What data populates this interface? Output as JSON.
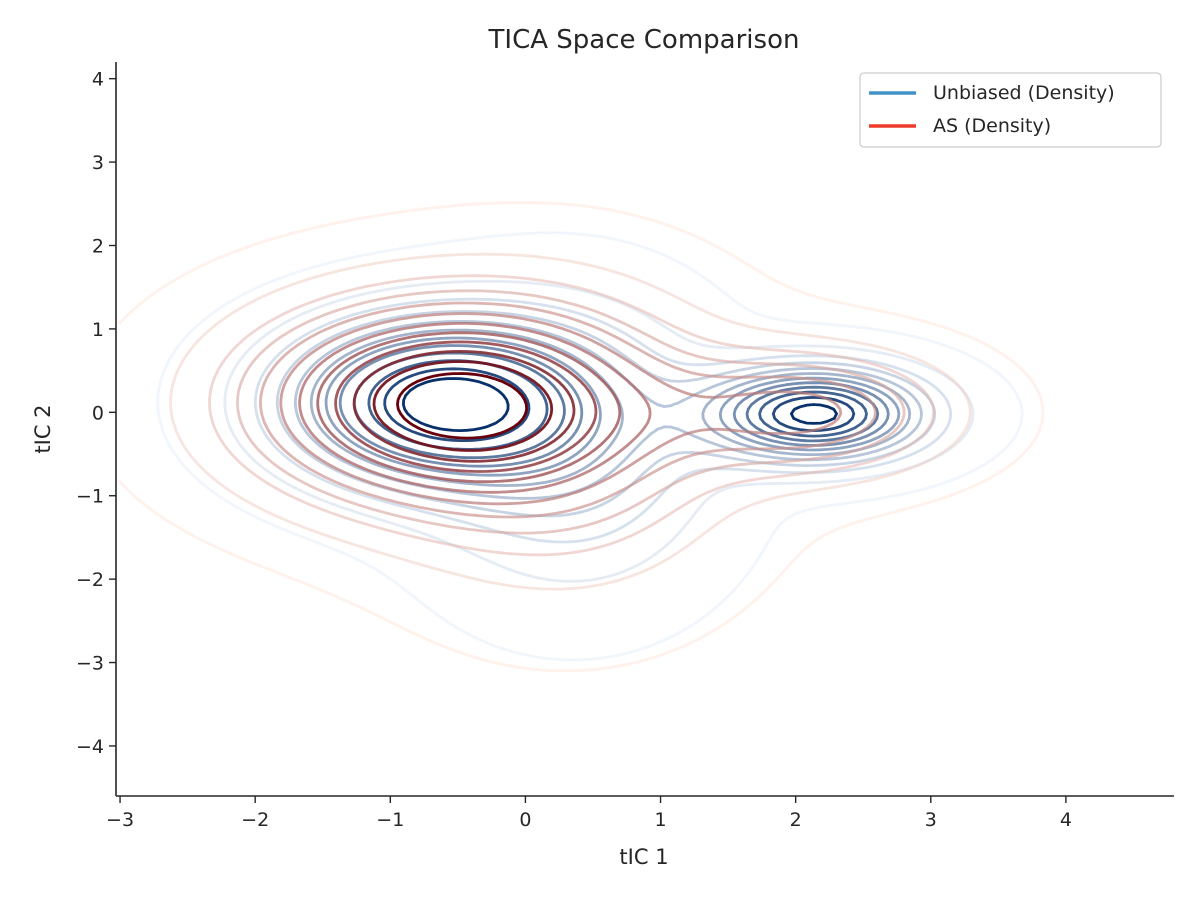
{
  "chart_data": {
    "type": "contour",
    "title": "TICA Space Comparison",
    "xlabel": "tIC 1",
    "ylabel": "tIC 2",
    "xlim": [
      -3.03,
      4.8
    ],
    "ylim": [
      -4.6,
      4.2
    ],
    "xticks": [
      -3,
      -2,
      -1,
      0,
      1,
      2,
      3,
      4
    ],
    "yticks": [
      -4,
      -3,
      -2,
      -1,
      0,
      1,
      2,
      3,
      4
    ],
    "xtick_labels": [
      "−3",
      "−2",
      "−1",
      "0",
      "1",
      "2",
      "3",
      "4"
    ],
    "ytick_labels": [
      "−4",
      "−3",
      "−2",
      "−1",
      "0",
      "1",
      "2",
      "3",
      "4"
    ],
    "grid": false,
    "legend_position": "top-right",
    "series": [
      {
        "name": "Unbiased (Density)",
        "legend_color": "#4292c6",
        "color_low": "#deebf7",
        "color_high": "#08306b",
        "components": [
          {
            "weight": 0.52,
            "mu": [
              -0.65,
              0.12
            ],
            "sigma": [
              0.75,
              0.65
            ]
          },
          {
            "weight": 0.25,
            "mu": [
              0.35,
              -0.45
            ],
            "sigma": [
              0.7,
              1.1
            ]
          },
          {
            "weight": 0.23,
            "mu": [
              2.15,
              -0.02
            ],
            "sigma": [
              0.55,
              0.38
            ]
          }
        ]
      },
      {
        "name": "AS (Density)",
        "legend_color": "#ef3b2c",
        "color_low": "#fee0d2",
        "color_high": "#67000d",
        "components": [
          {
            "weight": 0.62,
            "mu": [
              -0.65,
              0.12
            ],
            "sigma": [
              0.95,
              0.8
            ]
          },
          {
            "weight": 0.24,
            "mu": [
              0.3,
              -0.4
            ],
            "sigma": [
              0.85,
              1.2
            ]
          },
          {
            "weight": 0.14,
            "mu": [
              2.1,
              0.0
            ],
            "sigma": [
              0.7,
              0.5
            ]
          }
        ]
      }
    ]
  }
}
